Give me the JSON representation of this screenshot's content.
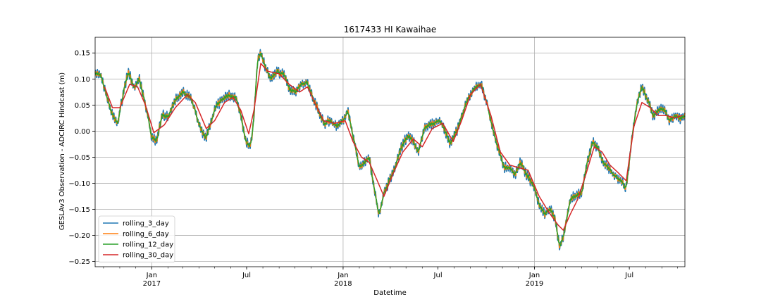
{
  "chart_data": {
    "type": "line",
    "title": "1617433 HI Kawaihae",
    "xlabel": "Datetime",
    "ylabel": "GESLAv3 Observation - ADCIRC Hindcast (m)",
    "xlim": [
      "2016-09-15",
      "2019-10-15"
    ],
    "ylim": [
      -0.26,
      0.18
    ],
    "grid": true,
    "legend_position": "lower-left",
    "y_ticks": [
      -0.25,
      -0.2,
      -0.15,
      -0.1,
      -0.05,
      0.0,
      0.05,
      0.1,
      0.15
    ],
    "y_tick_labels": [
      "−0.25",
      "−0.20",
      "−0.15",
      "−0.10",
      "−0.05",
      "0.00",
      "0.05",
      "0.10",
      "0.15"
    ],
    "x_ticks": [
      {
        "date": "2017-01-01",
        "label": "Jan",
        "sublabel": "2017"
      },
      {
        "date": "2017-07-01",
        "label": "Jul",
        "sublabel": ""
      },
      {
        "date": "2018-01-01",
        "label": "Jan",
        "sublabel": "2018"
      },
      {
        "date": "2018-07-01",
        "label": "Jul",
        "sublabel": ""
      },
      {
        "date": "2019-01-01",
        "label": "Jan",
        "sublabel": "2019"
      },
      {
        "date": "2019-07-01",
        "label": "Jul",
        "sublabel": ""
      }
    ],
    "x_grid": [
      "2017-01-01",
      "2018-01-01",
      "2019-01-01"
    ],
    "base_curve": [
      [
        "2016-09-15",
        0.11
      ],
      [
        "2016-09-25",
        0.108
      ],
      [
        "2016-10-05",
        0.075
      ],
      [
        "2016-10-18",
        0.03
      ],
      [
        "2016-10-28",
        0.015
      ],
      [
        "2016-11-10",
        0.085
      ],
      [
        "2016-11-18",
        0.115
      ],
      [
        "2016-11-28",
        0.08
      ],
      [
        "2016-12-08",
        0.1
      ],
      [
        "2016-12-18",
        0.06
      ],
      [
        "2017-01-01",
        -0.01
      ],
      [
        "2017-01-10",
        -0.02
      ],
      [
        "2017-01-20",
        0.03
      ],
      [
        "2017-02-01",
        0.025
      ],
      [
        "2017-02-15",
        0.06
      ],
      [
        "2017-03-01",
        0.075
      ],
      [
        "2017-03-15",
        0.065
      ],
      [
        "2017-03-25",
        0.04
      ],
      [
        "2017-04-05",
        0.0
      ],
      [
        "2017-04-15",
        -0.01
      ],
      [
        "2017-04-25",
        0.02
      ],
      [
        "2017-05-05",
        0.05
      ],
      [
        "2017-05-15",
        0.06
      ],
      [
        "2017-05-28",
        0.07
      ],
      [
        "2017-06-10",
        0.065
      ],
      [
        "2017-06-20",
        0.03
      ],
      [
        "2017-06-28",
        -0.015
      ],
      [
        "2017-07-05",
        -0.03
      ],
      [
        "2017-07-10",
        -0.02
      ],
      [
        "2017-07-16",
        0.04
      ],
      [
        "2017-07-22",
        0.14
      ],
      [
        "2017-07-28",
        0.15
      ],
      [
        "2017-08-05",
        0.125
      ],
      [
        "2017-08-15",
        0.1
      ],
      [
        "2017-08-28",
        0.115
      ],
      [
        "2017-09-10",
        0.11
      ],
      [
        "2017-09-20",
        0.08
      ],
      [
        "2017-10-01",
        0.075
      ],
      [
        "2017-10-12",
        0.09
      ],
      [
        "2017-10-25",
        0.095
      ],
      [
        "2017-11-05",
        0.06
      ],
      [
        "2017-11-15",
        0.04
      ],
      [
        "2017-11-25",
        0.015
      ],
      [
        "2017-12-08",
        0.02
      ],
      [
        "2017-12-20",
        0.01
      ],
      [
        "2018-01-01",
        0.02
      ],
      [
        "2018-01-10",
        0.04
      ],
      [
        "2018-01-20",
        -0.01
      ],
      [
        "2018-02-01",
        -0.07
      ],
      [
        "2018-02-10",
        -0.06
      ],
      [
        "2018-02-20",
        -0.05
      ],
      [
        "2018-03-01",
        -0.11
      ],
      [
        "2018-03-10",
        -0.16
      ],
      [
        "2018-03-20",
        -0.12
      ],
      [
        "2018-04-01",
        -0.09
      ],
      [
        "2018-04-10",
        -0.07
      ],
      [
        "2018-04-22",
        -0.03
      ],
      [
        "2018-05-05",
        -0.01
      ],
      [
        "2018-05-15",
        -0.02
      ],
      [
        "2018-05-25",
        -0.04
      ],
      [
        "2018-06-05",
        0.005
      ],
      [
        "2018-06-20",
        0.015
      ],
      [
        "2018-07-05",
        0.02
      ],
      [
        "2018-07-15",
        0.0
      ],
      [
        "2018-07-25",
        -0.025
      ],
      [
        "2018-08-10",
        0.01
      ],
      [
        "2018-08-25",
        0.06
      ],
      [
        "2018-09-10",
        0.085
      ],
      [
        "2018-09-20",
        0.09
      ],
      [
        "2018-10-01",
        0.06
      ],
      [
        "2018-10-10",
        0.02
      ],
      [
        "2018-10-22",
        -0.03
      ],
      [
        "2018-11-05",
        -0.07
      ],
      [
        "2018-11-15",
        -0.07
      ],
      [
        "2018-11-25",
        -0.085
      ],
      [
        "2018-12-05",
        -0.06
      ],
      [
        "2018-12-15",
        -0.08
      ],
      [
        "2019-01-01",
        -0.11
      ],
      [
        "2019-01-10",
        -0.14
      ],
      [
        "2019-01-20",
        -0.16
      ],
      [
        "2019-02-01",
        -0.15
      ],
      [
        "2019-02-10",
        -0.17
      ],
      [
        "2019-02-18",
        -0.225
      ],
      [
        "2019-02-28",
        -0.19
      ],
      [
        "2019-03-10",
        -0.13
      ],
      [
        "2019-03-20",
        -0.125
      ],
      [
        "2019-04-01",
        -0.12
      ],
      [
        "2019-04-12",
        -0.06
      ],
      [
        "2019-04-22",
        -0.02
      ],
      [
        "2019-05-01",
        -0.03
      ],
      [
        "2019-05-12",
        -0.06
      ],
      [
        "2019-05-25",
        -0.075
      ],
      [
        "2019-06-05",
        -0.085
      ],
      [
        "2019-06-15",
        -0.095
      ],
      [
        "2019-06-25",
        -0.11
      ],
      [
        "2019-07-05",
        -0.02
      ],
      [
        "2019-07-15",
        0.05
      ],
      [
        "2019-07-25",
        0.085
      ],
      [
        "2019-08-05",
        0.06
      ],
      [
        "2019-08-15",
        0.03
      ],
      [
        "2019-08-25",
        0.04
      ],
      [
        "2019-09-05",
        0.045
      ],
      [
        "2019-09-15",
        0.02
      ],
      [
        "2019-09-25",
        0.03
      ],
      [
        "2019-10-05",
        0.025
      ],
      [
        "2019-10-15",
        0.03
      ]
    ],
    "series": [
      {
        "name": "rolling_3_day",
        "color": "#1f77b4",
        "window_days": 3
      },
      {
        "name": "rolling_6_day",
        "color": "#ff7f0e",
        "window_days": 6
      },
      {
        "name": "rolling_12_day",
        "color": "#2ca02c",
        "window_days": 12
      },
      {
        "name": "rolling_30_day",
        "color": "#d62728",
        "window_days": 30,
        "points": [
          [
            "2016-10-03",
            0.085
          ],
          [
            "2016-10-18",
            0.045
          ],
          [
            "2016-11-01",
            0.045
          ],
          [
            "2016-11-20",
            0.09
          ],
          [
            "2016-12-05",
            0.085
          ],
          [
            "2016-12-20",
            0.05
          ],
          [
            "2017-01-05",
            -0.003
          ],
          [
            "2017-01-25",
            0.012
          ],
          [
            "2017-02-15",
            0.045
          ],
          [
            "2017-03-10",
            0.07
          ],
          [
            "2017-03-25",
            0.055
          ],
          [
            "2017-04-15",
            0.005
          ],
          [
            "2017-05-01",
            0.02
          ],
          [
            "2017-05-20",
            0.055
          ],
          [
            "2017-06-05",
            0.065
          ],
          [
            "2017-06-20",
            0.04
          ],
          [
            "2017-07-05",
            -0.005
          ],
          [
            "2017-07-15",
            0.04
          ],
          [
            "2017-07-28",
            0.13
          ],
          [
            "2017-08-10",
            0.115
          ],
          [
            "2017-09-01",
            0.11
          ],
          [
            "2017-09-20",
            0.09
          ],
          [
            "2017-10-10",
            0.075
          ],
          [
            "2017-10-25",
            0.085
          ],
          [
            "2017-11-10",
            0.05
          ],
          [
            "2017-11-25",
            0.02
          ],
          [
            "2017-12-15",
            0.015
          ],
          [
            "2018-01-05",
            0.02
          ],
          [
            "2018-01-20",
            -0.02
          ],
          [
            "2018-02-05",
            -0.05
          ],
          [
            "2018-02-20",
            -0.06
          ],
          [
            "2018-03-05",
            -0.09
          ],
          [
            "2018-03-20",
            -0.125
          ],
          [
            "2018-04-05",
            -0.085
          ],
          [
            "2018-04-25",
            -0.04
          ],
          [
            "2018-05-15",
            -0.015
          ],
          [
            "2018-06-01",
            -0.03
          ],
          [
            "2018-06-20",
            0.005
          ],
          [
            "2018-07-10",
            0.015
          ],
          [
            "2018-07-30",
            -0.02
          ],
          [
            "2018-08-15",
            0.02
          ],
          [
            "2018-09-01",
            0.07
          ],
          [
            "2018-09-20",
            0.09
          ],
          [
            "2018-10-10",
            0.03
          ],
          [
            "2018-10-28",
            -0.04
          ],
          [
            "2018-11-15",
            -0.065
          ],
          [
            "2018-12-01",
            -0.07
          ],
          [
            "2018-12-20",
            -0.075
          ],
          [
            "2019-01-10",
            -0.125
          ],
          [
            "2019-01-28",
            -0.155
          ],
          [
            "2019-02-15",
            -0.18
          ],
          [
            "2019-02-25",
            -0.19
          ],
          [
            "2019-03-10",
            -0.16
          ],
          [
            "2019-03-25",
            -0.13
          ],
          [
            "2019-04-10",
            -0.08
          ],
          [
            "2019-04-25",
            -0.03
          ],
          [
            "2019-05-10",
            -0.04
          ],
          [
            "2019-05-25",
            -0.065
          ],
          [
            "2019-06-10",
            -0.08
          ],
          [
            "2019-06-25",
            -0.095
          ],
          [
            "2019-07-10",
            0.01
          ],
          [
            "2019-07-25",
            0.055
          ],
          [
            "2019-08-10",
            0.045
          ],
          [
            "2019-08-25",
            0.03
          ],
          [
            "2019-09-10",
            0.03
          ],
          [
            "2019-09-25",
            0.025
          ],
          [
            "2019-10-10",
            0.03
          ]
        ]
      }
    ]
  }
}
